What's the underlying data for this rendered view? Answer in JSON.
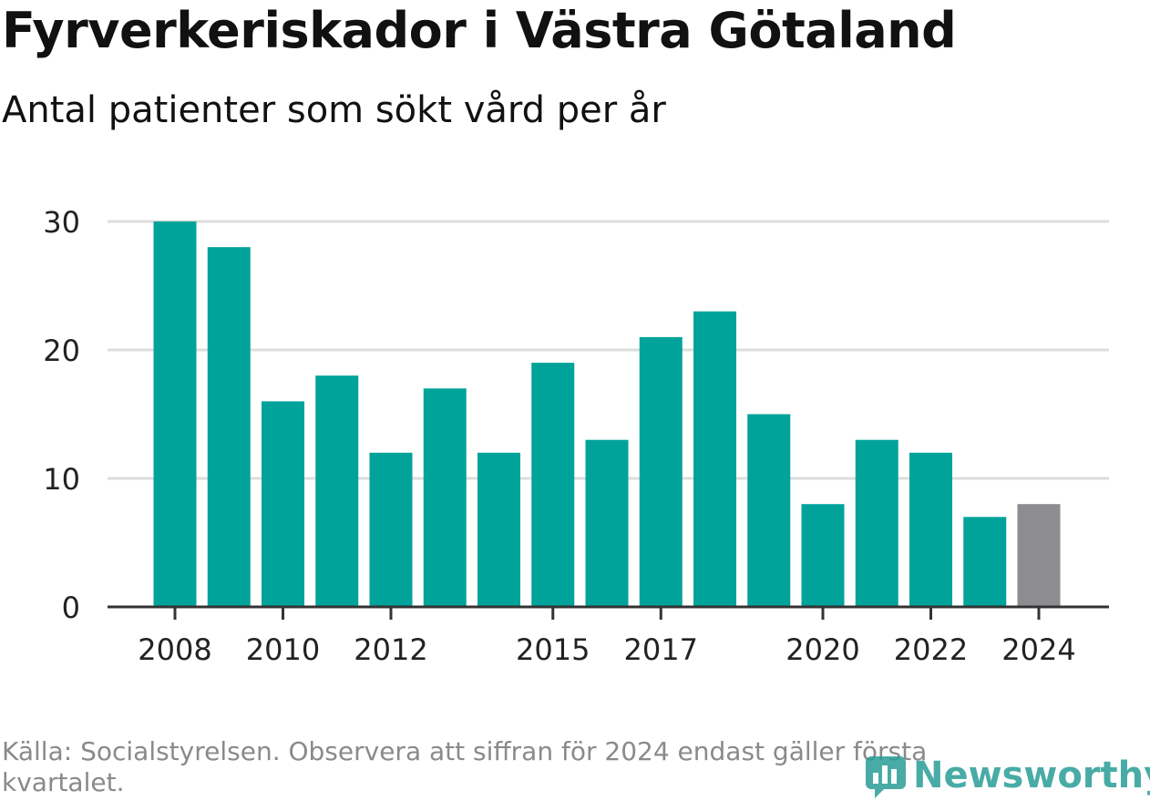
{
  "chart_data": {
    "type": "bar",
    "title": "Fyrverkeriskador i Västra Götaland",
    "subtitle": "Antal patienter som sökt vård per år",
    "categories": [
      "2008",
      "2009",
      "2010",
      "2011",
      "2012",
      "2013",
      "2014",
      "2015",
      "2016",
      "2017",
      "2018",
      "2019",
      "2020",
      "2021",
      "2022",
      "2023",
      "2024"
    ],
    "x_tick_labels": [
      "2008",
      "2010",
      "2012",
      "2015",
      "2017",
      "2020",
      "2022",
      "2024"
    ],
    "values": [
      30,
      28,
      16,
      18,
      12,
      17,
      12,
      19,
      13,
      21,
      23,
      15,
      8,
      13,
      12,
      7,
      8
    ],
    "ylim": [
      0,
      30
    ],
    "y_ticks": [
      0,
      10,
      20,
      30
    ],
    "xlabel": "",
    "ylabel": "",
    "grid": true,
    "colors": {
      "bar": "#00a39a",
      "bar_highlight": "#8c8c91",
      "grid": "#dddddd",
      "axis": "#333333",
      "tick_text": "#222222"
    },
    "highlight_category": "2024"
  },
  "footer": {
    "source": "Källa: Socialstyrelsen. Observera att siffran för 2024 endast gäller första kvartalet."
  },
  "logo": {
    "text": "Newsworthy",
    "icon": "newsworthy-chart-icon"
  }
}
